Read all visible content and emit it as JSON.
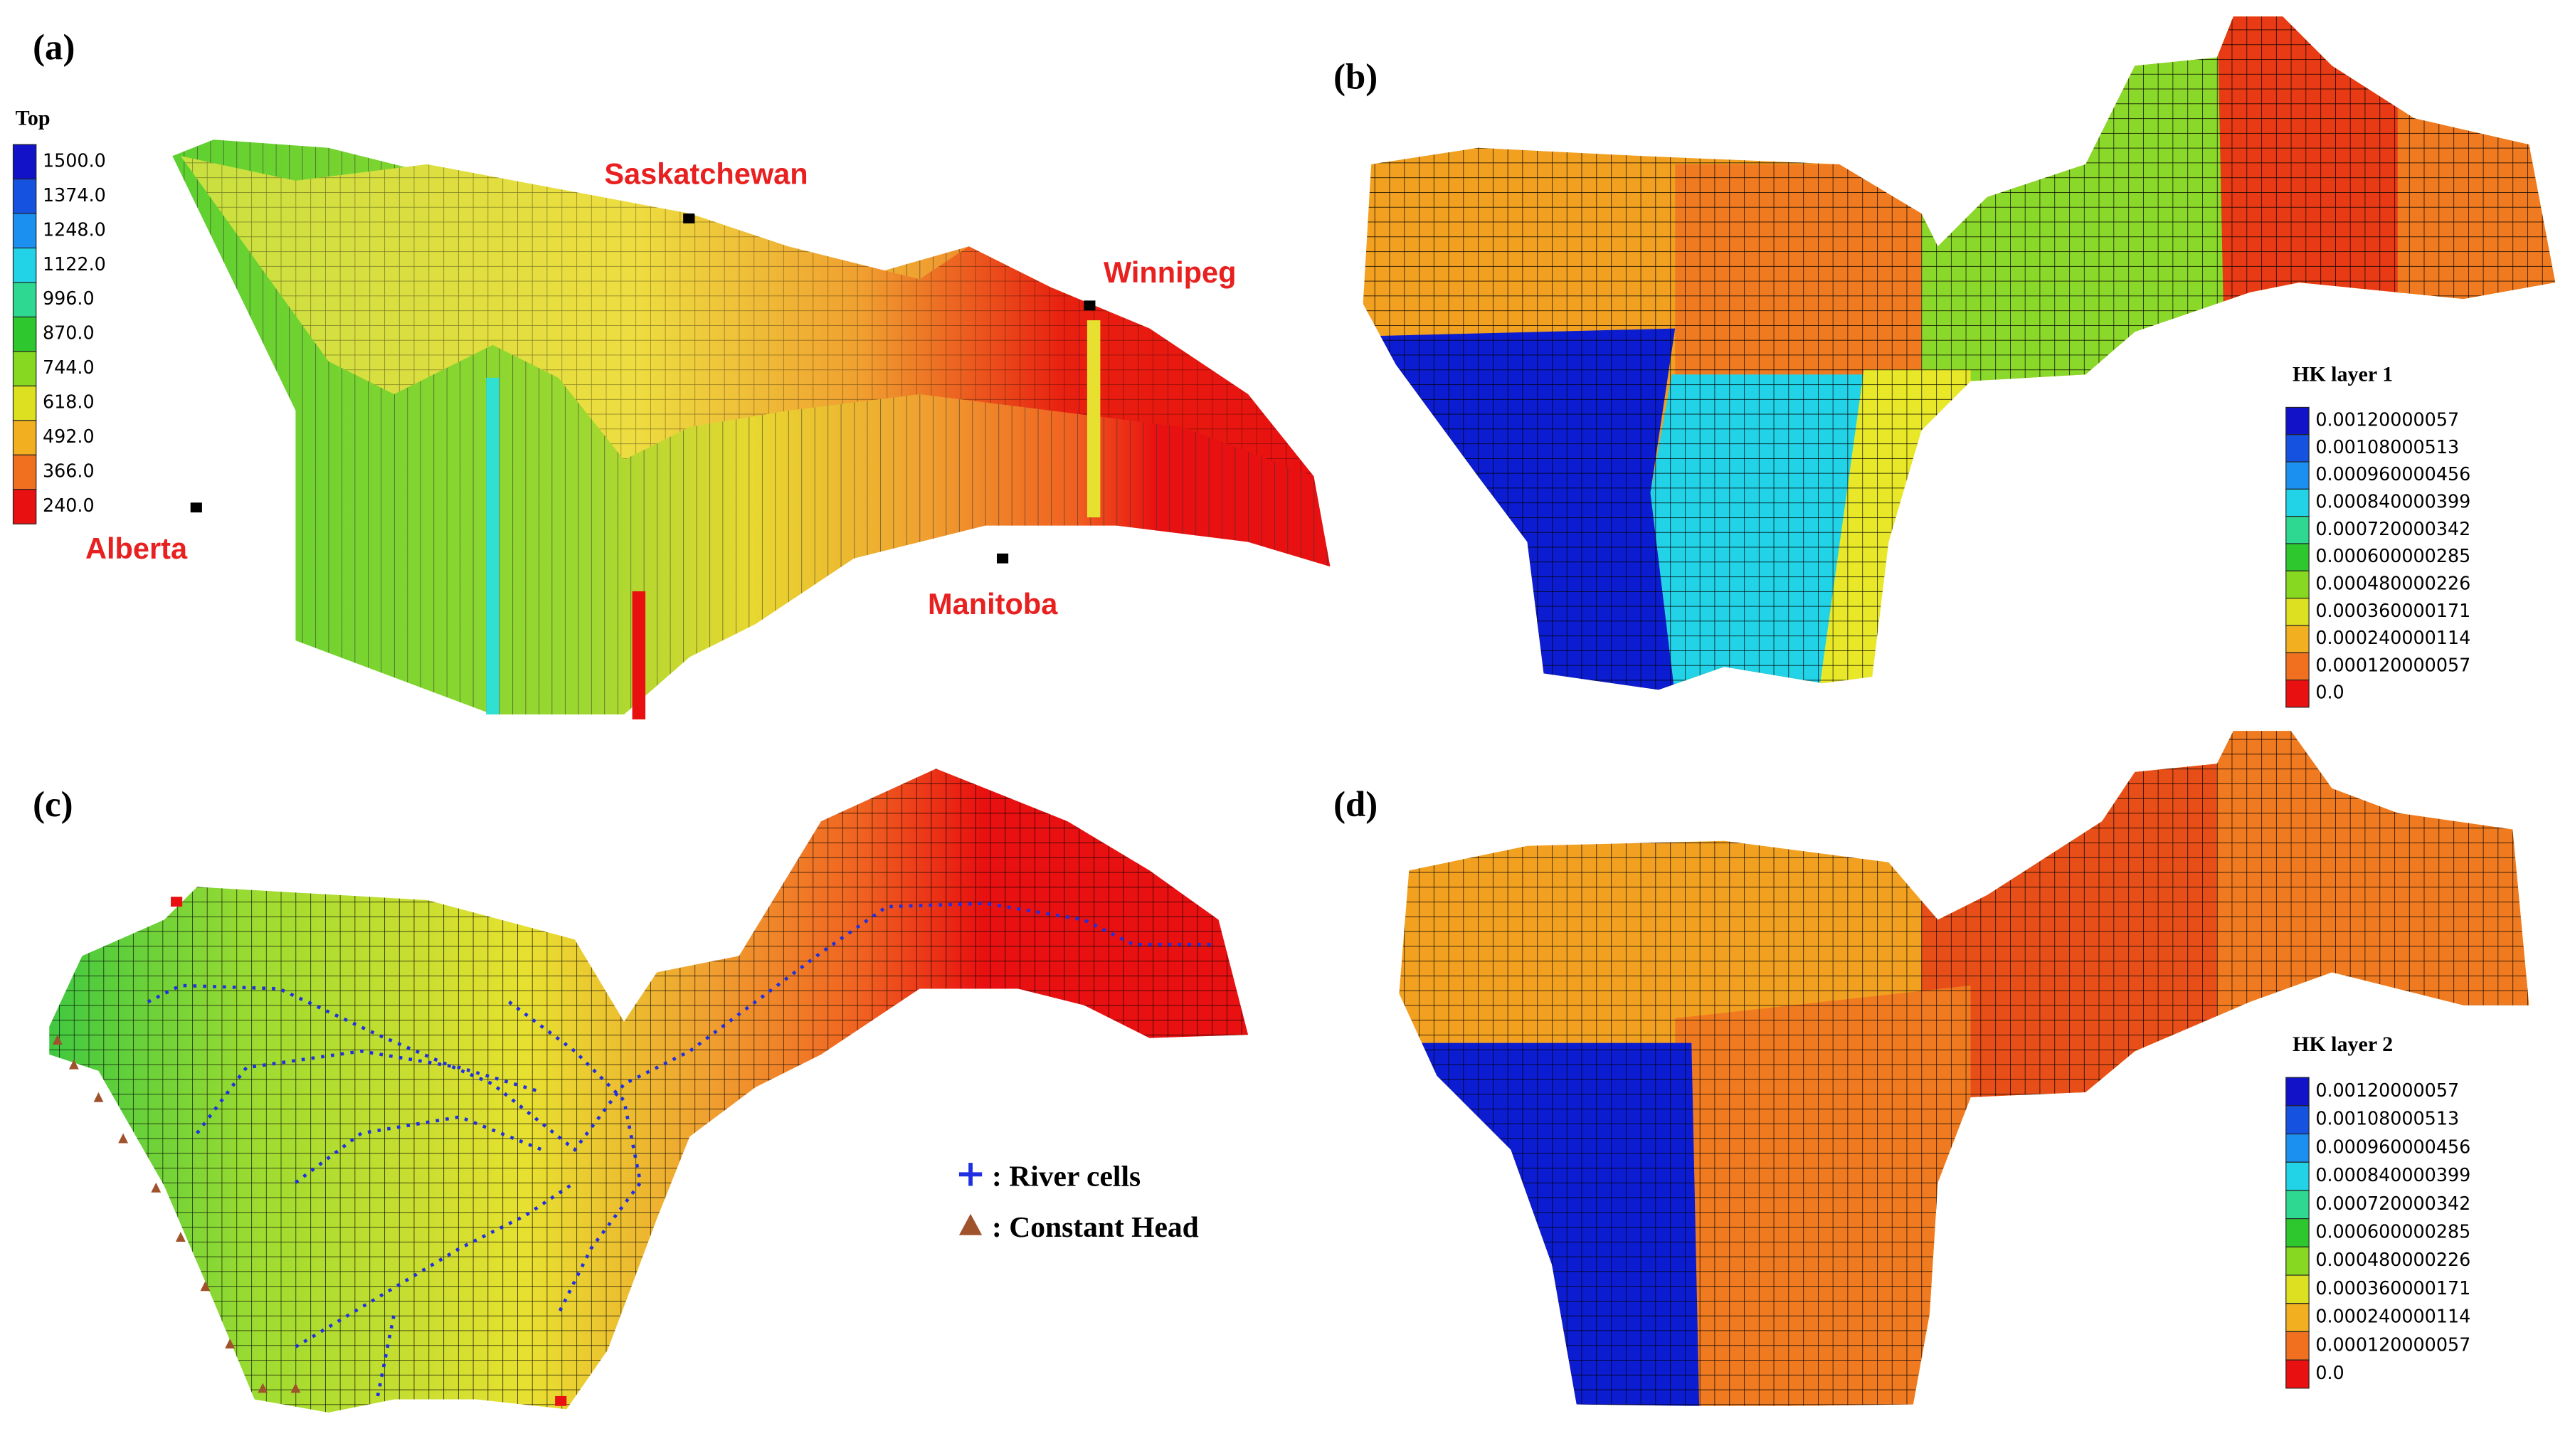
{
  "panels": [
    {
      "label": "(a)",
      "legend": {
        "title": "Top",
        "labels": [
          "1500.0",
          "1374.0",
          "1248.0",
          "1122.0",
          "996.0",
          "870.0",
          "744.0",
          "618.0",
          "492.0",
          "366.0",
          "240.0"
        ],
        "colors": [
          "#1212c8",
          "#1652e0",
          "#1c90f0",
          "#22d2e6",
          "#2ed890",
          "#2ec82e",
          "#86d820",
          "#dce020",
          "#f2b020",
          "#f07020",
          "#e81010"
        ]
      },
      "places": [
        "Saskatchewan",
        "Winnipeg",
        "Alberta",
        "Manitoba"
      ]
    },
    {
      "label": "(b)",
      "legend": {
        "title": "HK layer 1",
        "labels": [
          "0.00120000057",
          "0.00108000513",
          "0.000960000456",
          "0.000840000399",
          "0.000720000342",
          "0.000600000285",
          "0.000480000226",
          "0.000360000171",
          "0.000240000114",
          "0.000120000057",
          "0.0"
        ],
        "colors": [
          "#1212c8",
          "#1652e0",
          "#1c90f0",
          "#22d2e6",
          "#2ed890",
          "#2ec82e",
          "#86d820",
          "#dce020",
          "#f2b020",
          "#f07020",
          "#e81010"
        ]
      }
    },
    {
      "label": "(c)",
      "key": [
        ": River cells",
        ": Constant Head"
      ]
    },
    {
      "label": "(d)",
      "legend": {
        "title": "HK layer 2",
        "labels": [
          "0.00120000057",
          "0.00108000513",
          "0.000960000456",
          "0.000840000399",
          "0.000720000342",
          "0.000600000285",
          "0.000480000226",
          "0.000360000171",
          "0.000240000114",
          "0.000120000057",
          "0.0"
        ],
        "colors": [
          "#1212c8",
          "#1652e0",
          "#1c90f0",
          "#22d2e6",
          "#2ed890",
          "#2ec82e",
          "#86d820",
          "#dce020",
          "#f2b020",
          "#f07020",
          "#e81010"
        ]
      }
    }
  ]
}
